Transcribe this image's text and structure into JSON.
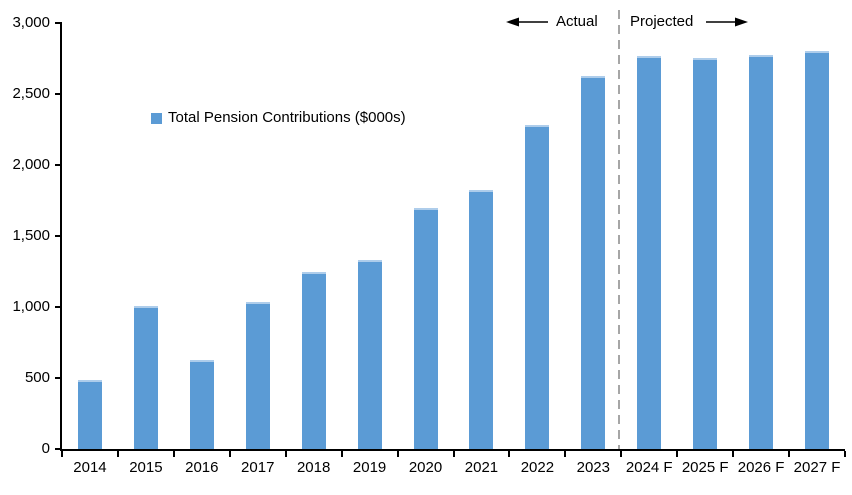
{
  "chart_data": {
    "type": "bar",
    "title": "",
    "legend_label": "Total Pension Contributions ($000s)",
    "categories": [
      "2014",
      "2015",
      "2016",
      "2017",
      "2018",
      "2019",
      "2020",
      "2021",
      "2022",
      "2023",
      "2024 F",
      "2025 F",
      "2026 F",
      "2027 F"
    ],
    "values": [
      470,
      990,
      610,
      1020,
      1230,
      1320,
      1680,
      1810,
      2270,
      2610,
      2750,
      2740,
      2760,
      2790
    ],
    "ylim": [
      0,
      3000
    ],
    "y_tick_values": [
      0,
      500,
      1000,
      1500,
      2000,
      2500,
      3000
    ],
    "y_tick_labels": [
      "0",
      "500",
      "1,000",
      "1,500",
      "2,000",
      "2,500",
      "3,000"
    ],
    "grid": false,
    "legend_position": "inside-upper-left",
    "divider_after_index": 9,
    "annotations": {
      "actual": "Actual",
      "projected": "Projected"
    },
    "colors": {
      "bar": "#5B9BD5",
      "bar_top_edge": "#AECDEB",
      "divider": "#A6A6A6",
      "axis": "#000000",
      "text": "#000000"
    }
  }
}
